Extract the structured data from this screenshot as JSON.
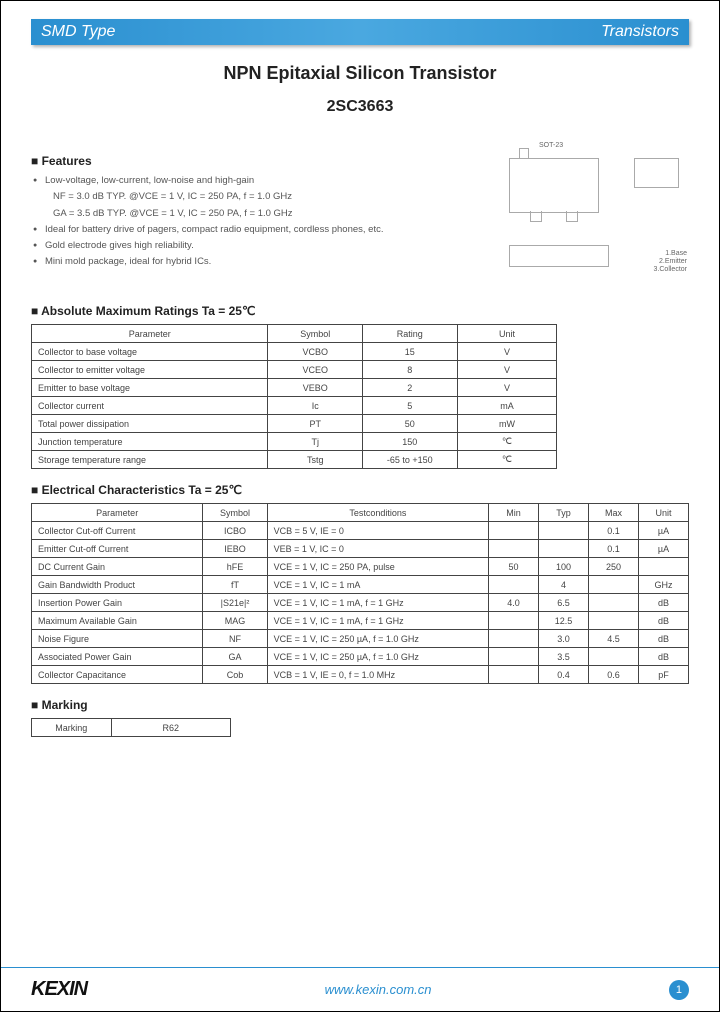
{
  "header": {
    "left": "SMD Type",
    "right": "Transistors"
  },
  "titles": {
    "main": "NPN Epitaxial  Silicon Transistor",
    "part": "2SC3663"
  },
  "package_label": "SOT-23",
  "features": {
    "heading": "Features",
    "items": [
      {
        "bullet": true,
        "text": "Low-voltage, low-current, low-noise and high-gain"
      },
      {
        "bullet": false,
        "text": "NF = 3.0 dB TYP. @VCE = 1 V, IC = 250 PA, f = 1.0 GHz"
      },
      {
        "bullet": false,
        "text": "GA = 3.5 dB TYP. @VCE = 1 V, IC = 250 PA, f = 1.0 GHz"
      },
      {
        "bullet": true,
        "text": "Ideal for battery drive of pagers, compact radio equipment, cordless phones, etc."
      },
      {
        "bullet": true,
        "text": "Gold electrode gives high reliability."
      },
      {
        "bullet": true,
        "text": "Mini mold package, ideal for hybrid ICs."
      }
    ]
  },
  "amr": {
    "heading": "Absolute Maximum Ratings Ta = 25℃",
    "columns": [
      "Parameter",
      "Symbol",
      "Rating",
      "Unit"
    ],
    "col_widths": [
      "45%",
      "18%",
      "18%",
      "19%"
    ],
    "rows": [
      [
        "Collector to base voltage",
        "VCBO",
        "15",
        "V"
      ],
      [
        "Collector to emitter voltage",
        "VCEO",
        "8",
        "V"
      ],
      [
        "Emitter to base voltage",
        "VEBO",
        "2",
        "V"
      ],
      [
        "Collector current",
        "Ic",
        "5",
        "mA"
      ],
      [
        "Total power dissipation",
        "PT",
        "50",
        "mW"
      ],
      [
        "Junction temperature",
        "Tj",
        "150",
        "℃"
      ],
      [
        "Storage temperature range",
        "Tstg",
        "-65 to +150",
        "℃"
      ]
    ]
  },
  "elec": {
    "heading": "Electrical Characteristics Ta = 25℃",
    "columns": [
      "Parameter",
      "Symbol",
      "Testconditions",
      "Min",
      "Typ",
      "Max",
      "Unit"
    ],
    "col_widths": [
      "24%",
      "9%",
      "31%",
      "7%",
      "7%",
      "7%",
      "7%"
    ],
    "rows": [
      [
        "Collector Cut-off Current",
        "ICBO",
        "VCB = 5 V, IE = 0",
        "",
        "",
        "0.1",
        "µA"
      ],
      [
        "Emitter Cut-off Current",
        "IEBO",
        "VEB = 1 V, IC = 0",
        "",
        "",
        "0.1",
        "µA"
      ],
      [
        "DC Current Gain",
        "hFE",
        "VCE = 1 V, IC = 250 PA, pulse",
        "50",
        "100",
        "250",
        ""
      ],
      [
        "Gain Bandwidth Product",
        "fT",
        "VCE = 1 V, IC = 1 mA",
        "",
        "4",
        "",
        "GHz"
      ],
      [
        "Insertion Power Gain",
        "|S21e|²",
        "VCE = 1 V, IC = 1 mA, f = 1 GHz",
        "4.0",
        "6.5",
        "",
        "dB"
      ],
      [
        "Maximum Available Gain",
        "MAG",
        "VCE = 1 V, IC = 1 mA, f = 1 GHz",
        "",
        "12.5",
        "",
        "dB"
      ],
      [
        "Noise Figure",
        "NF",
        "VCE = 1 V, IC = 250 µA, f = 1.0 GHz",
        "",
        "3.0",
        "4.5",
        "dB"
      ],
      [
        "Associated Power Gain",
        "GA",
        "VCE = 1 V, IC = 250 µA, f = 1.0 GHz",
        "",
        "3.5",
        "",
        "dB"
      ],
      [
        "Collector Capacitance",
        "Cob",
        "VCB = 1 V, IE = 0, f = 1.0 MHz",
        "",
        "0.4",
        "0.6",
        "pF"
      ]
    ]
  },
  "marking": {
    "heading": "Marking",
    "label": "Marking",
    "value": "R62"
  },
  "footer": {
    "logo": "KEXIN",
    "url": "www.kexin.com.cn",
    "page": "1"
  }
}
